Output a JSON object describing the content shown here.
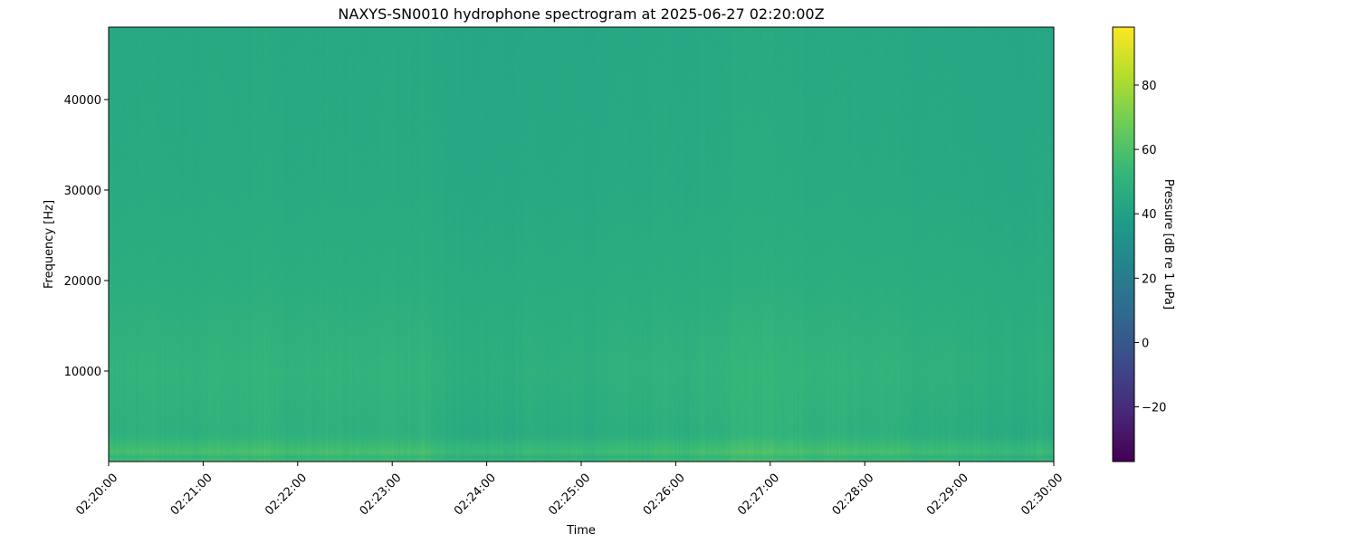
{
  "chart_data": {
    "type": "heatmap",
    "title": "NAXYS-SN0010 hydrophone spectrogram at 2025-06-27 02:20:00Z",
    "xlabel": "Time",
    "ylabel": "Frequency [Hz]",
    "x_tick_labels": [
      "02:20:00",
      "02:21:00",
      "02:22:00",
      "02:23:00",
      "02:24:00",
      "02:25:00",
      "02:26:00",
      "02:27:00",
      "02:28:00",
      "02:29:00",
      "02:30:00"
    ],
    "xlim": [
      "02:20:00",
      "02:30:00"
    ],
    "y_ticks": [
      10000,
      20000,
      30000,
      40000
    ],
    "y_tick_labels": [
      "10000",
      "20000",
      "30000",
      "40000"
    ],
    "ylim": [
      0,
      48000
    ],
    "colorbar": {
      "label": "Pressure [dB re 1 uPa]",
      "colormap": "viridis",
      "range": [
        -37,
        98
      ],
      "ticks": [
        -20,
        0,
        20,
        40,
        60,
        80
      ],
      "tick_labels": [
        "−20",
        "0",
        "20",
        "40",
        "60",
        "80"
      ]
    },
    "frequency_profile_db": [
      {
        "freq_hz": 48000,
        "db": 44
      },
      {
        "freq_hz": 30000,
        "db": 45
      },
      {
        "freq_hz": 20000,
        "db": 47
      },
      {
        "freq_hz": 10000,
        "db": 50
      },
      {
        "freq_hz": 3000,
        "db": 48
      },
      {
        "freq_hz": 1000,
        "db": 57
      },
      {
        "freq_hz": 500,
        "db": 50
      },
      {
        "freq_hz": 0,
        "db": 58
      }
    ],
    "grid": false
  }
}
